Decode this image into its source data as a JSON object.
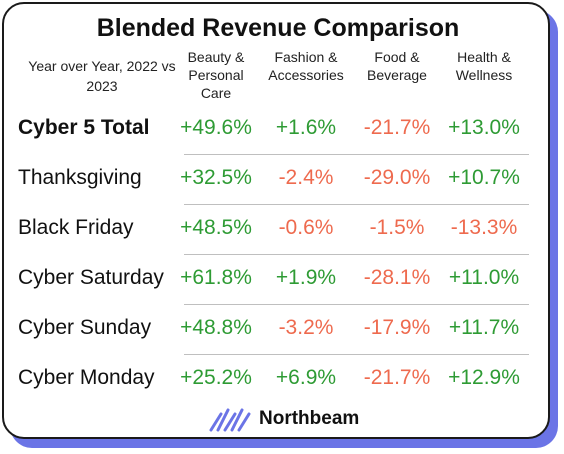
{
  "chart_data": {
    "type": "table",
    "title": "Blended Revenue Comparison",
    "subtitle": "Year over Year, 2022 vs 2023",
    "columns": [
      "Beauty & Personal Care",
      "Fashion & Accessories",
      "Food & Beverage",
      "Health & Wellness"
    ],
    "rows": [
      {
        "label": "Cyber 5 Total",
        "values": [
          "+49.6%",
          "+1.6%",
          "-21.7%",
          "+13.0%"
        ]
      },
      {
        "label": "Thanksgiving",
        "values": [
          "+32.5%",
          "-2.4%",
          "-29.0%",
          "+10.7%"
        ]
      },
      {
        "label": "Black Friday",
        "values": [
          "+48.5%",
          "-0.6%",
          "-1.5%",
          "-13.3%"
        ]
      },
      {
        "label": "Cyber Saturday",
        "values": [
          "+61.8%",
          "+1.9%",
          "-28.1%",
          "+11.0%"
        ]
      },
      {
        "label": "Cyber Sunday",
        "values": [
          "+48.8%",
          "-3.2%",
          "-17.9%",
          "+11.7%"
        ]
      },
      {
        "label": "Cyber Monday",
        "values": [
          "+25.2%",
          "+6.9%",
          "-21.7%",
          "+12.9%"
        ]
      }
    ]
  },
  "brand": {
    "name": "Northbeam",
    "logo_icon": "northbeam-logo-icon",
    "logo_color": "#6b74e6"
  },
  "colors": {
    "positive": "#2e9b34",
    "negative": "#ee6a4e",
    "shadow": "#6b74e6"
  }
}
